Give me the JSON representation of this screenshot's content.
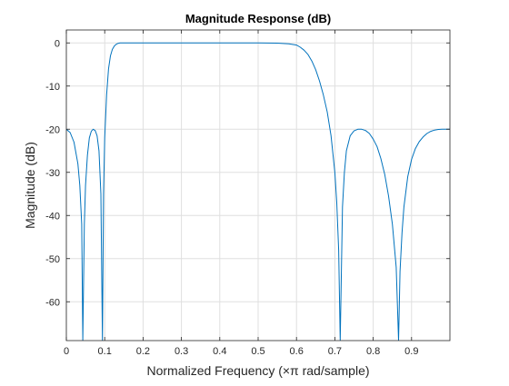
{
  "chart_data": {
    "type": "line",
    "title": "Magnitude Response (dB)",
    "xlabel": "Normalized Frequency (×π rad/sample)",
    "ylabel": "Magnitude (dB)",
    "xlim": [
      0,
      1
    ],
    "ylim": [
      -69,
      3
    ],
    "xticks": [
      0,
      0.1,
      0.2,
      0.3,
      0.4,
      0.5,
      0.6,
      0.7,
      0.8,
      0.9
    ],
    "xtick_labels": [
      "0",
      "0.1",
      "0.2",
      "0.3",
      "0.4",
      "0.5",
      "0.6",
      "0.7",
      "0.8",
      "0.9"
    ],
    "yticks": [
      0,
      -10,
      -20,
      -30,
      -40,
      -50,
      -60
    ],
    "ytick_labels": [
      "0",
      "-10",
      "-20",
      "-30",
      "-40",
      "-50",
      "-60"
    ],
    "grid": true,
    "line_color": "#0072bd",
    "series": [
      {
        "x": [
          0,
          0.01,
          0.02,
          0.03,
          0.035,
          0.04,
          0.043,
          0.047,
          0.05,
          0.055,
          0.06,
          0.065,
          0.07,
          0.075,
          0.08,
          0.085,
          0.09,
          0.094,
          0.097,
          0.1,
          0.105,
          0.11,
          0.115,
          0.12,
          0.125,
          0.13,
          0.135,
          0.14,
          0.145,
          0.15,
          0.16,
          0.2,
          0.3,
          0.4,
          0.5,
          0.55,
          0.58,
          0.6,
          0.61,
          0.62,
          0.63,
          0.64,
          0.65,
          0.66,
          0.67,
          0.68,
          0.69,
          0.7,
          0.705,
          0.71,
          0.714,
          0.72,
          0.725,
          0.73,
          0.74,
          0.75,
          0.76,
          0.77,
          0.78,
          0.79,
          0.8,
          0.81,
          0.82,
          0.83,
          0.84,
          0.85,
          0.86,
          0.866,
          0.87,
          0.875,
          0.88,
          0.89,
          0.9,
          0.91,
          0.92,
          0.93,
          0.94,
          0.95,
          0.96,
          0.97,
          0.98,
          0.99,
          1.0
        ],
        "y": [
          -20,
          -20.8,
          -23,
          -28,
          -33,
          -42,
          -69,
          -42,
          -33,
          -26,
          -22,
          -20.5,
          -20,
          -20.3,
          -21.5,
          -25,
          -35,
          -69,
          -35,
          -22,
          -12,
          -6,
          -3,
          -1.5,
          -0.7,
          -0.3,
          -0.1,
          0,
          0,
          0,
          0,
          0,
          0,
          0,
          0,
          -0.05,
          -0.2,
          -0.5,
          -1,
          -1.7,
          -2.7,
          -4.2,
          -6.2,
          -8.8,
          -12,
          -16,
          -21.5,
          -30,
          -37,
          -48,
          -69,
          -38,
          -30,
          -25,
          -21.5,
          -20.4,
          -20,
          -20,
          -20.3,
          -21,
          -22.3,
          -24,
          -26.8,
          -30.5,
          -35.5,
          -42,
          -52,
          -69,
          -53,
          -44,
          -38,
          -31,
          -27,
          -24.5,
          -22.9,
          -21.8,
          -21,
          -20.5,
          -20.2,
          -20.05,
          -20,
          -20,
          -20
        ]
      }
    ]
  }
}
